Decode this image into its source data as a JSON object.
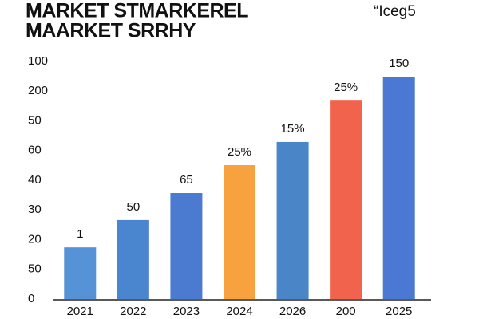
{
  "chart_data": {
    "type": "bar",
    "title_lines": [
      "MARKET STMARKEREL",
      "MAARKET SRRHY"
    ],
    "corner_text": "“Iceg5",
    "categories": [
      "2021",
      "2022",
      "2023",
      "2024",
      "2026",
      "200",
      "2025"
    ],
    "values": [
      1.74,
      2.66,
      3.57,
      4.51,
      5.29,
      6.68,
      7.49
    ],
    "bar_labels": [
      "1",
      "50",
      "65",
      "25%",
      "15%",
      "25%",
      "150"
    ],
    "colors": [
      "#5592d6",
      "#4a85cf",
      "#4a7bd0",
      "#f8a13f",
      "#4a85c8",
      "#f2634e",
      "#4a78d2"
    ],
    "ylim": [
      0,
      8
    ],
    "yticks": [
      {
        "value": 0,
        "label": "0"
      },
      {
        "value": 1,
        "label": "50"
      },
      {
        "value": 2,
        "label": "20"
      },
      {
        "value": 3,
        "label": "30"
      },
      {
        "value": 4,
        "label": "40"
      },
      {
        "value": 5,
        "label": "60"
      },
      {
        "value": 6,
        "label": "50"
      },
      {
        "value": 7,
        "label": "200"
      },
      {
        "value": 8,
        "label": "100"
      }
    ],
    "grid": false
  }
}
